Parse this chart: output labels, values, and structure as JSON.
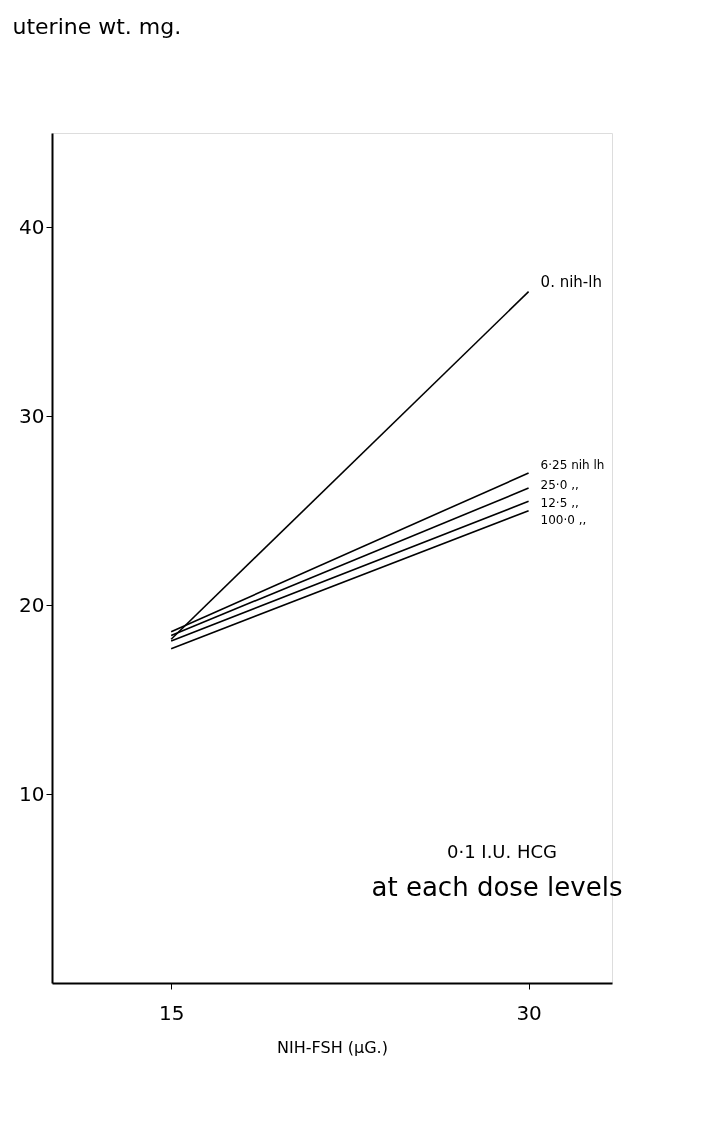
{
  "chart_data": {
    "type": "line",
    "ylabel": "uterine wt. mg.",
    "xlabel": "NIH-FSH (µG.)",
    "x": [
      15,
      30
    ],
    "series": [
      {
        "name": "0. nih-lh",
        "color": "#000000",
        "values": [
          18.2,
          36.6
        ]
      },
      {
        "name": "6·25 nih lh",
        "color": "#000000",
        "values": [
          18.6,
          27.0
        ]
      },
      {
        "name": "25·0 ,,",
        "color": "#000000",
        "values": [
          18.4,
          26.2
        ]
      },
      {
        "name": "12·5 ,,",
        "color": "#000000",
        "values": [
          18.1,
          25.5
        ]
      },
      {
        "name": "100·0 ,,",
        "color": "#000000",
        "values": [
          17.7,
          25.0
        ]
      }
    ],
    "xlim": [
      10,
      33.5
    ],
    "xticks": [
      15,
      30
    ],
    "ylim": [
      0,
      45
    ],
    "yticks": [
      10,
      20,
      30,
      40
    ],
    "annotations": [
      "0·1 I.U. HCG",
      "at each dose levels"
    ],
    "grid": false,
    "marker": "none",
    "line_style": "solid"
  }
}
